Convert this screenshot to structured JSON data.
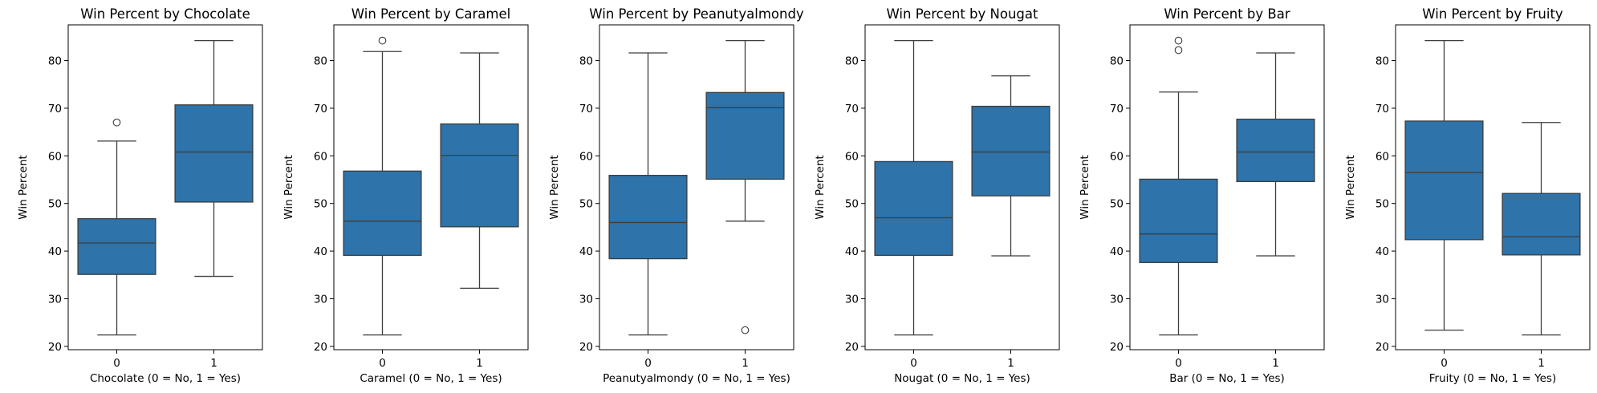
{
  "chart_data": [
    {
      "type": "box",
      "title": "Win Percent by Chocolate",
      "xlabel": "Chocolate (0 = No, 1 = Yes)",
      "ylabel": "Win Percent",
      "ylim": [
        19.3,
        87.5
      ],
      "yticks": [
        20,
        30,
        40,
        50,
        60,
        70,
        80
      ],
      "box_color": "#2e73a9",
      "categories": [
        "0",
        "1"
      ],
      "boxes": [
        {
          "whislo": 22.4,
          "q1": 35.1,
          "med": 41.7,
          "q3": 46.8,
          "whishi": 63.1,
          "fliers": [
            67.0
          ]
        },
        {
          "whislo": 34.7,
          "q1": 50.3,
          "med": 60.8,
          "q3": 70.7,
          "whishi": 84.2,
          "fliers": []
        }
      ]
    },
    {
      "type": "box",
      "title": "Win Percent by Caramel",
      "xlabel": "Caramel (0 = No, 1 = Yes)",
      "ylabel": "Win Percent",
      "ylim": [
        19.3,
        87.5
      ],
      "yticks": [
        20,
        30,
        40,
        50,
        60,
        70,
        80
      ],
      "box_color": "#2e73a9",
      "categories": [
        "0",
        "1"
      ],
      "boxes": [
        {
          "whislo": 22.4,
          "q1": 39.1,
          "med": 46.3,
          "q3": 56.8,
          "whishi": 81.9,
          "fliers": [
            84.2
          ]
        },
        {
          "whislo": 32.2,
          "q1": 45.1,
          "med": 60.1,
          "q3": 66.7,
          "whishi": 81.6,
          "fliers": []
        }
      ]
    },
    {
      "type": "box",
      "title": "Win Percent by Peanutyalmondy",
      "xlabel": "Peanutyalmondy (0 = No, 1 = Yes)",
      "ylabel": "Win Percent",
      "ylim": [
        19.3,
        87.5
      ],
      "yticks": [
        20,
        30,
        40,
        50,
        60,
        70,
        80
      ],
      "box_color": "#2e73a9",
      "categories": [
        "0",
        "1"
      ],
      "boxes": [
        {
          "whislo": 22.4,
          "q1": 38.4,
          "med": 46.0,
          "q3": 55.9,
          "whishi": 81.6,
          "fliers": []
        },
        {
          "whislo": 46.3,
          "q1": 55.1,
          "med": 70.1,
          "q3": 73.3,
          "whishi": 84.2,
          "fliers": [
            23.4
          ]
        }
      ]
    },
    {
      "type": "box",
      "title": "Win Percent by Nougat",
      "xlabel": "Nougat (0 = No, 1 = Yes)",
      "ylabel": "Win Percent",
      "ylim": [
        19.3,
        87.5
      ],
      "yticks": [
        20,
        30,
        40,
        50,
        60,
        70,
        80
      ],
      "box_color": "#2e73a9",
      "categories": [
        "0",
        "1"
      ],
      "boxes": [
        {
          "whislo": 22.4,
          "q1": 39.1,
          "med": 47.0,
          "q3": 58.8,
          "whishi": 84.2,
          "fliers": []
        },
        {
          "whislo": 39.0,
          "q1": 51.6,
          "med": 60.8,
          "q3": 70.4,
          "whishi": 76.8,
          "fliers": []
        }
      ]
    },
    {
      "type": "box",
      "title": "Win Percent by Bar",
      "xlabel": "Bar (0 = No, 1 = Yes)",
      "ylabel": "Win Percent",
      "ylim": [
        19.3,
        87.5
      ],
      "yticks": [
        20,
        30,
        40,
        50,
        60,
        70,
        80
      ],
      "box_color": "#2e73a9",
      "categories": [
        "0",
        "1"
      ],
      "boxes": [
        {
          "whislo": 22.4,
          "q1": 37.6,
          "med": 43.6,
          "q3": 55.1,
          "whishi": 73.4,
          "fliers": [
            82.2,
            84.2
          ]
        },
        {
          "whislo": 39.0,
          "q1": 54.6,
          "med": 60.8,
          "q3": 67.7,
          "whishi": 81.6,
          "fliers": []
        }
      ]
    },
    {
      "type": "box",
      "title": "Win Percent by Fruity",
      "xlabel": "Fruity (0 = No, 1 = Yes)",
      "ylabel": "Win Percent",
      "ylim": [
        19.3,
        87.5
      ],
      "yticks": [
        20,
        30,
        40,
        50,
        60,
        70,
        80
      ],
      "box_color": "#2e73a9",
      "categories": [
        "0",
        "1"
      ],
      "boxes": [
        {
          "whislo": 23.4,
          "q1": 42.4,
          "med": 56.5,
          "q3": 67.3,
          "whishi": 84.2,
          "fliers": []
        },
        {
          "whislo": 22.4,
          "q1": 39.2,
          "med": 43.0,
          "q3": 52.1,
          "whishi": 67.0,
          "fliers": []
        }
      ]
    }
  ]
}
